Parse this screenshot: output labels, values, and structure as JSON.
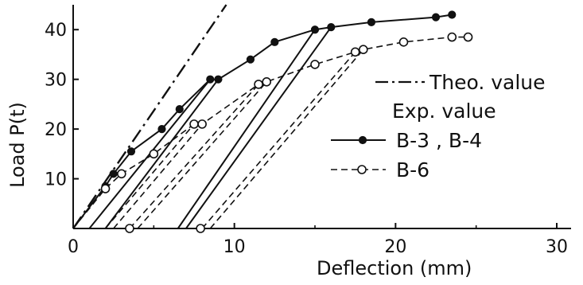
{
  "chart_data": {
    "type": "line",
    "xlabel": "Deflection (mm)",
    "ylabel": "Load  P(t)",
    "xlim": [
      0,
      30
    ],
    "ylim": [
      0,
      45
    ],
    "x_ticks": [
      {
        "value": 0,
        "label": "0"
      },
      {
        "value": 10,
        "label": "10"
      },
      {
        "value": 20,
        "label": "20"
      },
      {
        "value": 30,
        "label": "30"
      }
    ],
    "y_ticks": [
      {
        "value": 10,
        "label": "10"
      },
      {
        "value": 20,
        "label": "20"
      },
      {
        "value": 30,
        "label": "30"
      },
      {
        "value": 40,
        "label": "40"
      }
    ],
    "grid": false,
    "legend": {
      "placement": "right",
      "theo_label": "Theo. value",
      "exp_heading": "Exp. value",
      "b34_label": "B-3 , B-4",
      "b6_label": "B-6"
    },
    "series": [
      {
        "name": "Theo. value",
        "style": "dashdot",
        "marker": "none",
        "color": "#111111",
        "points": [
          [
            0,
            0
          ],
          [
            9.5,
            45
          ]
        ]
      },
      {
        "name": "B-3 , B-4",
        "style": "solid",
        "marker": "filled-circle",
        "color": "#111111",
        "points": [
          [
            0,
            0
          ],
          [
            2.0,
            8.5
          ],
          [
            2.5,
            11
          ],
          [
            3.6,
            15.5
          ],
          [
            5.5,
            20
          ],
          [
            6.6,
            24
          ],
          [
            8.5,
            30
          ],
          [
            9.0,
            30
          ],
          [
            11.0,
            34
          ],
          [
            12.5,
            37.5
          ],
          [
            15.0,
            40
          ],
          [
            16.0,
            40.5
          ],
          [
            18.5,
            41.5
          ],
          [
            22.5,
            42.5
          ],
          [
            23.5,
            43
          ]
        ]
      },
      {
        "name": "B-6",
        "style": "dashed",
        "marker": "open-circle",
        "color": "#111111",
        "points": [
          [
            0,
            0
          ],
          [
            2.0,
            8
          ],
          [
            3.0,
            11
          ],
          [
            5.0,
            15
          ],
          [
            7.5,
            21
          ],
          [
            8.0,
            21
          ],
          [
            11.5,
            29
          ],
          [
            12.0,
            29.5
          ],
          [
            15.0,
            33
          ],
          [
            17.5,
            35.5
          ],
          [
            18.0,
            36
          ],
          [
            20.5,
            37.5
          ],
          [
            23.5,
            38.5
          ],
          [
            24.5,
            38.5
          ]
        ]
      }
    ],
    "reload_lines": [
      {
        "group": "B-3 , B-4",
        "style": "solid",
        "points": [
          [
            1.0,
            0
          ],
          [
            8.5,
            30
          ]
        ]
      },
      {
        "group": "B-3 , B-4",
        "style": "solid",
        "points": [
          [
            2.0,
            0
          ],
          [
            9.0,
            30
          ]
        ]
      },
      {
        "group": "B-3 , B-4",
        "style": "solid",
        "points": [
          [
            6.5,
            0
          ],
          [
            15.0,
            40
          ]
        ]
      },
      {
        "group": "B-3 , B-4",
        "style": "solid",
        "points": [
          [
            7.0,
            0
          ],
          [
            16.0,
            40.5
          ]
        ]
      },
      {
        "group": "B-6",
        "style": "dashed",
        "points": [
          [
            2.0,
            0
          ],
          [
            7.5,
            21
          ]
        ]
      },
      {
        "group": "B-6",
        "style": "dashed",
        "points": [
          [
            2.5,
            0
          ],
          [
            8.0,
            21
          ]
        ]
      },
      {
        "group": "B-6",
        "style": "dashed",
        "points": [
          [
            3.5,
            0
          ],
          [
            11.5,
            29
          ]
        ]
      },
      {
        "group": "B-6",
        "style": "dashed",
        "points": [
          [
            4.0,
            0
          ],
          [
            12.0,
            29.5
          ]
        ]
      },
      {
        "group": "B-6",
        "style": "dashed",
        "points": [
          [
            8.0,
            0
          ],
          [
            17.5,
            35.5
          ]
        ]
      },
      {
        "group": "B-6",
        "style": "dashed",
        "points": [
          [
            8.5,
            0
          ],
          [
            18.0,
            36
          ]
        ]
      }
    ],
    "zero_load_points": [
      {
        "group": "B-6",
        "x": 3.5,
        "y": 0
      },
      {
        "group": "B-6",
        "x": 7.9,
        "y": 0
      }
    ]
  }
}
